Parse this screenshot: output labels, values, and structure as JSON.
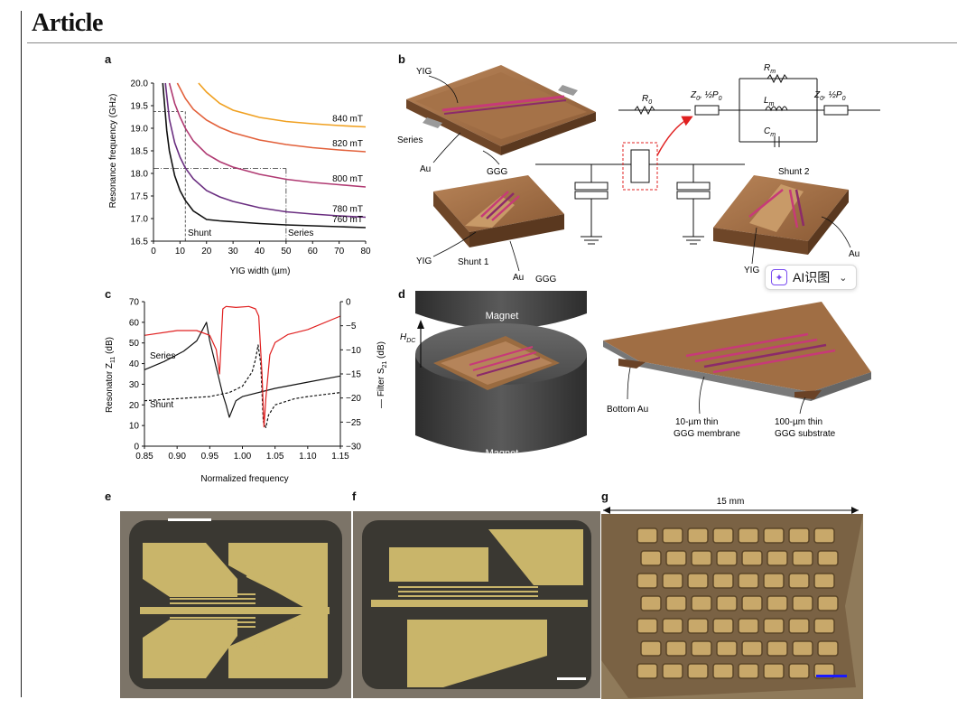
{
  "header": {
    "title": "Article"
  },
  "panels": {
    "a": {
      "label": "a",
      "xlabel": "YIG width (µm)",
      "ylabel": "Resonance frequency (GHz)",
      "annotations": {
        "shunt": "Shunt",
        "series": "Series"
      }
    },
    "b": {
      "label": "b",
      "labels": {
        "yig_top": "YIG",
        "series": "Series",
        "au_left": "Au",
        "ggg_left": "GGG",
        "yig_mid": "YIG",
        "shunt1": "Shunt 1",
        "au_mid": "Au",
        "ggg_mid": "GGG",
        "shunt2": "Shunt 2",
        "yig_right": "YIG",
        "au_right": "Au",
        "r0": "R",
        "r0_sub": "0",
        "rm": "R",
        "rm_sub": "m",
        "lm": "L",
        "lm_sub": "m",
        "cm": "C",
        "cm_sub": "m",
        "z0_left": "Z",
        "z0_right": "Z",
        "z_sub": "0",
        "p_half": ", ½P",
        "p_sub": "0"
      }
    },
    "c": {
      "label": "c",
      "xlabel": "Normalized frequency",
      "ylabel_left": "Resonator Z",
      "ylabel_left_sub": "11",
      "ylabel_left_unit": " (dB)",
      "ylabel_right": "— Filter S",
      "ylabel_right_sub": "21",
      "ylabel_right_unit": " (dB)",
      "annotations": {
        "series": "Series",
        "shunt": "Shunt"
      }
    },
    "d": {
      "label": "d",
      "labels": {
        "magnet_top": "Magnet",
        "magnet_bottom": "Magnet",
        "hdc": "H",
        "hdc_sub": "DC",
        "bottom_au": "Bottom Au",
        "membrane_1": "10-µm thin",
        "membrane_2": "GGG membrane",
        "substrate_1": "100-µm thin",
        "substrate_2": "GGG substrate"
      }
    },
    "e": {
      "label": "e"
    },
    "f": {
      "label": "f"
    },
    "g": {
      "label": "g",
      "scale_text": "15 mm"
    }
  },
  "overlay": {
    "ai_button": "AI识图"
  },
  "chart_data": [
    {
      "type": "line",
      "panel": "a",
      "xlabel": "YIG width (µm)",
      "ylabel": "Resonance frequency (GHz)",
      "xlim": [
        0,
        80
      ],
      "ylim": [
        16.5,
        20.0
      ],
      "xticks": [
        0,
        10,
        20,
        30,
        40,
        50,
        60,
        70,
        80
      ],
      "yticks": [
        16.5,
        17.0,
        17.5,
        18.0,
        18.5,
        19.0,
        19.5,
        20.0
      ],
      "series": [
        {
          "name": "840 mT",
          "color": "#f0a020",
          "x": [
            17,
            20,
            25,
            30,
            40,
            50,
            60,
            70,
            80
          ],
          "y": [
            20.0,
            19.8,
            19.55,
            19.4,
            19.24,
            19.15,
            19.1,
            19.06,
            19.03
          ]
        },
        {
          "name": "820 mT",
          "color": "#e2603a",
          "x": [
            9,
            12,
            15,
            20,
            25,
            30,
            40,
            50,
            60,
            70,
            80
          ],
          "y": [
            20.0,
            19.66,
            19.42,
            19.18,
            19.02,
            18.9,
            18.74,
            18.64,
            18.57,
            18.52,
            18.48
          ]
        },
        {
          "name": "800 mT",
          "color": "#b03a72",
          "x": [
            6,
            8,
            10,
            12,
            15,
            20,
            25,
            30,
            40,
            50,
            60,
            70,
            80
          ],
          "y": [
            20.0,
            19.55,
            19.25,
            19.0,
            18.72,
            18.43,
            18.26,
            18.14,
            17.98,
            17.87,
            17.8,
            17.75,
            17.7
          ]
        },
        {
          "name": "780 mT",
          "color": "#6a2e80",
          "x": [
            4.5,
            6,
            8,
            10,
            12,
            15,
            20,
            25,
            30,
            40,
            50,
            60,
            70,
            80
          ],
          "y": [
            20.0,
            19.2,
            18.68,
            18.36,
            18.12,
            17.88,
            17.62,
            17.48,
            17.38,
            17.24,
            17.15,
            17.1,
            17.06,
            17.03
          ]
        },
        {
          "name": "760 mT",
          "color": "#111111",
          "x": [
            3.5,
            5,
            6,
            8,
            10,
            12,
            15,
            20,
            25,
            30,
            40,
            50,
            60,
            70,
            80
          ],
          "y": [
            20.0,
            18.95,
            18.5,
            17.95,
            17.62,
            17.4,
            17.17,
            16.98,
            16.95,
            16.93,
            16.89,
            16.86,
            16.84,
            16.82,
            16.8
          ]
        }
      ],
      "reference_lines": [
        {
          "label": "Shunt",
          "x": 12,
          "y": 19.37
        },
        {
          "label": "Series",
          "x": 50,
          "y": 18.11
        }
      ]
    },
    {
      "type": "line",
      "panel": "c",
      "xlabel": "Normalized frequency",
      "ylabel": "Resonator Z11 (dB)",
      "y2label": "Filter S21 (dB)",
      "xlim": [
        0.85,
        1.15
      ],
      "ylim": [
        0,
        70
      ],
      "y2lim": [
        -30,
        0
      ],
      "xticks": [
        0.85,
        0.9,
        0.95,
        1.0,
        1.05,
        1.1,
        1.15
      ],
      "yticks": [
        0,
        10,
        20,
        30,
        40,
        50,
        60,
        70
      ],
      "y2ticks": [
        -30,
        -25,
        -20,
        -15,
        -10,
        -5,
        0
      ],
      "series": [
        {
          "name": "Series",
          "axis": "left",
          "color": "#111111",
          "dash": "solid",
          "x": [
            0.85,
            0.88,
            0.91,
            0.93,
            0.94,
            0.945,
            0.95,
            0.96,
            0.97,
            0.975,
            0.98,
            0.99,
            1.0,
            1.05,
            1.1,
            1.15
          ],
          "y": [
            37,
            41,
            46,
            51,
            57,
            60,
            51,
            38,
            25,
            20,
            14,
            22,
            24,
            28,
            31,
            34
          ]
        },
        {
          "name": "Shunt",
          "axis": "left",
          "color": "#111111",
          "dash": "dashed",
          "x": [
            0.85,
            0.9,
            0.95,
            0.98,
            1.0,
            1.015,
            1.02,
            1.024,
            1.028,
            1.032,
            1.036,
            1.04,
            1.05,
            1.08,
            1.1,
            1.15
          ],
          "y": [
            22,
            23,
            24,
            26,
            29,
            36,
            42,
            49,
            40,
            12,
            9,
            15,
            20,
            23,
            24,
            26
          ]
        },
        {
          "name": "Filter S21",
          "axis": "right",
          "color": "#e02020",
          "dash": "solid",
          "x": [
            0.85,
            0.9,
            0.93,
            0.95,
            0.96,
            0.965,
            0.97,
            0.975,
            0.99,
            1.01,
            1.02,
            1.025,
            1.03,
            1.033,
            1.036,
            1.042,
            1.05,
            1.07,
            1.1,
            1.15
          ],
          "y": [
            -7.0,
            -6.0,
            -6.0,
            -7.0,
            -10.0,
            -15.0,
            -1.5,
            -1.0,
            -1.2,
            -1.0,
            -1.5,
            -3.0,
            -15.0,
            -26.0,
            -20.0,
            -11.0,
            -8.5,
            -6.8,
            -5.8,
            -3.0
          ]
        }
      ]
    }
  ]
}
